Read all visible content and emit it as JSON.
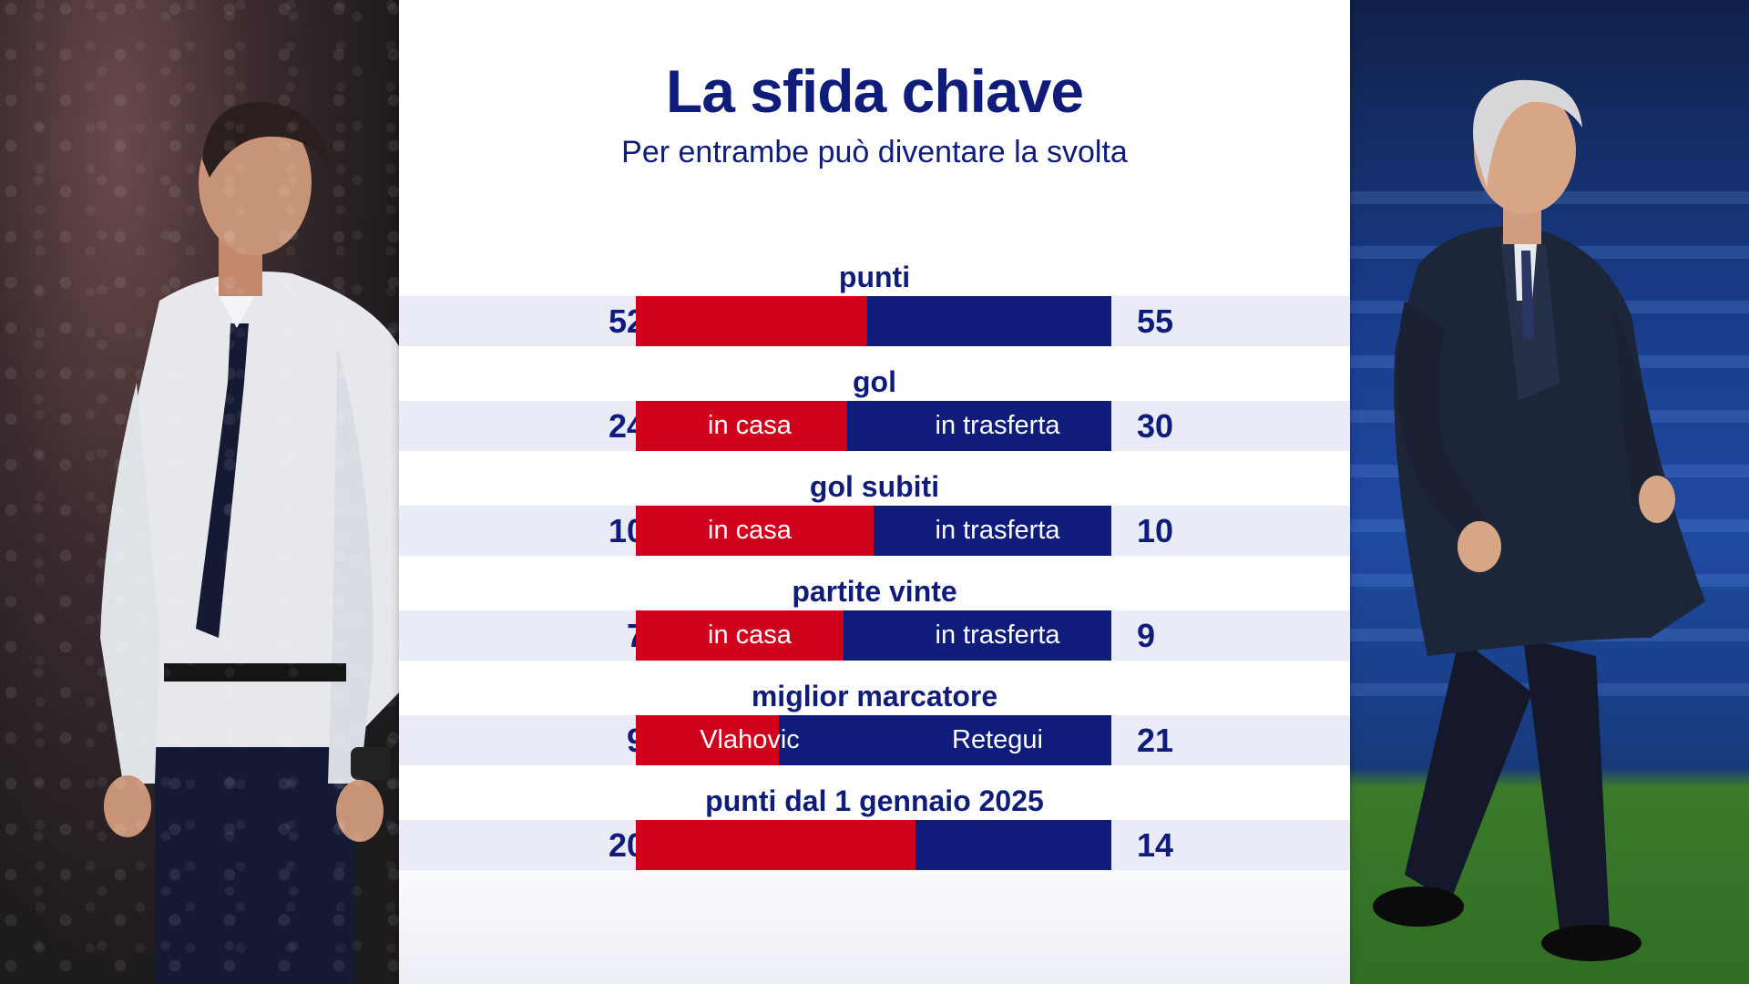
{
  "header": {
    "title": "La sfida chiave",
    "subtitle": "Per entrambe può diventare la svolta"
  },
  "colors": {
    "left_team": "#d0021b",
    "right_team": "#0f1c7a",
    "band": "#e9ebf7"
  },
  "chart_data": {
    "type": "bar",
    "title": "La sfida chiave",
    "subtitle": "Per entrambe può diventare la svolta",
    "categories": [
      "punti",
      "gol",
      "gol subiti",
      "partite vinte",
      "miglior marcatore",
      "punti dal 1 gennaio 2025"
    ],
    "series": [
      {
        "values": [
          52,
          24,
          10,
          7,
          9,
          20
        ]
      },
      {
        "values": [
          55,
          30,
          10,
          9,
          21,
          14
        ]
      }
    ],
    "rows": [
      {
        "label": "punti",
        "left": 52,
        "right": 55,
        "left_text": "",
        "right_text": ""
      },
      {
        "label": "gol",
        "left": 24,
        "right": 30,
        "left_text": "in casa",
        "right_text": "in trasferta"
      },
      {
        "label": "gol subiti",
        "left": 10,
        "right": 10,
        "left_text": "in casa",
        "right_text": "in trasferta"
      },
      {
        "label": "partite vinte",
        "left": 7,
        "right": 9,
        "left_text": "in casa",
        "right_text": "in trasferta"
      },
      {
        "label": "miglior marcatore",
        "left": 9,
        "right": 21,
        "left_text": "Vlahovic",
        "right_text": "Retegui"
      },
      {
        "label": "punti dal 1 gennaio 2025",
        "left": 20,
        "right": 14,
        "left_text": "",
        "right_text": ""
      }
    ]
  }
}
